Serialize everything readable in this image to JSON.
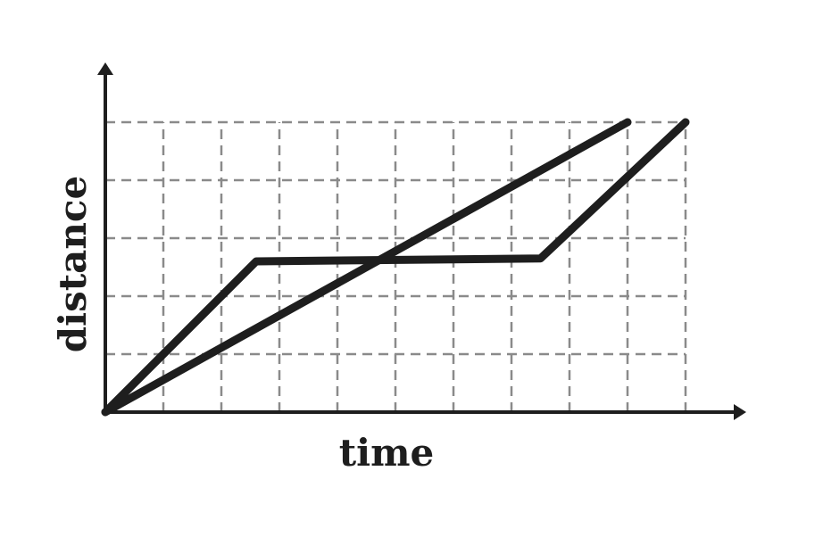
{
  "chart_data": {
    "type": "line",
    "xlabel": "time",
    "ylabel": "distance",
    "xlim": [
      0,
      10
    ],
    "ylim": [
      0,
      5
    ],
    "grid": true,
    "x_ticks": [
      1,
      2,
      3,
      4,
      5,
      6,
      7,
      8,
      9,
      10
    ],
    "y_ticks": [
      1,
      2,
      3,
      4,
      5
    ],
    "series": [
      {
        "points": [
          [
            0,
            0
          ],
          [
            9,
            5
          ]
        ],
        "color": "#1e1e1e"
      },
      {
        "points": [
          [
            0,
            0
          ],
          [
            2.6,
            2.6
          ],
          [
            7.5,
            2.65
          ],
          [
            10,
            5
          ]
        ],
        "color": "#1e1e1e"
      }
    ]
  }
}
